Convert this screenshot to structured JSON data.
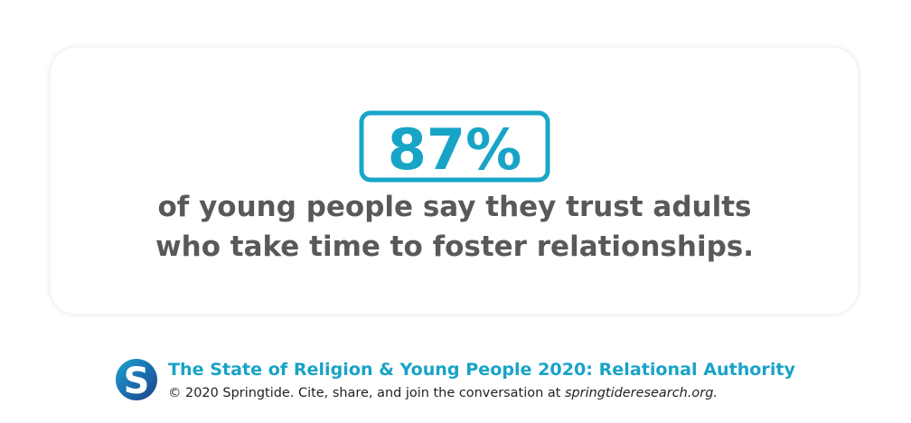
{
  "card": {
    "stat": "87%",
    "lines": [
      "of young people say they trust adults",
      "who take time to foster relationships."
    ]
  },
  "footer": {
    "logo": "S",
    "title": "The State of Religion & Young People 2020: Relational Authority",
    "credit": "© 2020 Springtide. Cite, share, and join the conversation at ",
    "link": "springtideresearch.org."
  }
}
